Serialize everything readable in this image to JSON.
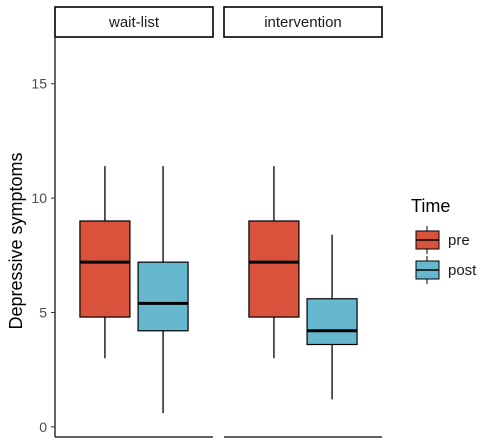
{
  "chart_data": {
    "type": "boxplot",
    "ylabel": "Depressive symptoms",
    "ylim": [
      -0.4,
      17
    ],
    "yticks": [
      0,
      5,
      10,
      15
    ],
    "panels": [
      {
        "title": "wait-list",
        "boxes": [
          {
            "group": "pre",
            "whisker_low": 3.0,
            "q1": 4.8,
            "median": 7.2,
            "q3": 9.0,
            "whisker_high": 11.4
          },
          {
            "group": "post",
            "whisker_low": 0.6,
            "q1": 4.2,
            "median": 5.4,
            "q3": 7.2,
            "whisker_high": 11.4
          }
        ]
      },
      {
        "title": "intervention",
        "boxes": [
          {
            "group": "pre",
            "whisker_low": 3.0,
            "q1": 4.8,
            "median": 7.2,
            "q3": 9.0,
            "whisker_high": 11.4
          },
          {
            "group": "post",
            "whisker_low": 1.2,
            "q1": 3.6,
            "median": 4.2,
            "q3": 5.6,
            "whisker_high": 8.4
          }
        ]
      }
    ],
    "legend": {
      "title": "Time",
      "position": "right",
      "entries": [
        {
          "label": "pre",
          "color": "#D9523B"
        },
        {
          "label": "post",
          "color": "#66B8CF"
        }
      ]
    },
    "grid": false
  }
}
